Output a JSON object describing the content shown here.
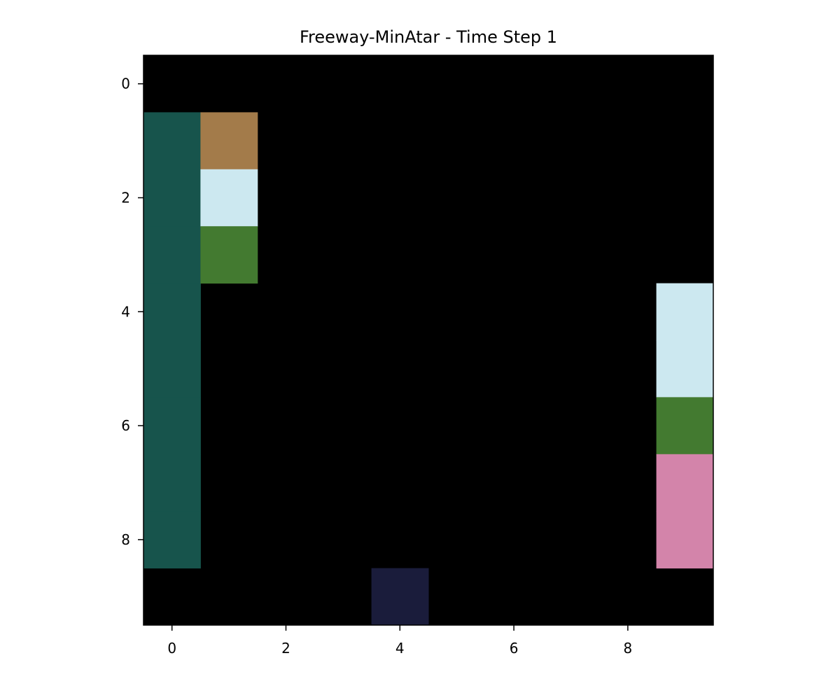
{
  "title": "Freeway-MinAtar - Time Step 1",
  "grid": {
    "rows": 10,
    "cols": 10,
    "background_color": "#000000"
  },
  "axes": {
    "x_ticks": [
      {
        "value": 0,
        "label": "0"
      },
      {
        "value": 2,
        "label": "2"
      },
      {
        "value": 4,
        "label": "4"
      },
      {
        "value": 6,
        "label": "6"
      },
      {
        "value": 8,
        "label": "8"
      }
    ],
    "y_ticks": [
      {
        "value": 0,
        "label": "0"
      },
      {
        "value": 2,
        "label": "2"
      },
      {
        "value": 4,
        "label": "4"
      },
      {
        "value": 6,
        "label": "6"
      },
      {
        "value": 8,
        "label": "8"
      }
    ],
    "xlim": [
      -0.5,
      9.5
    ],
    "ylim": [
      9.5,
      -0.5
    ]
  },
  "cells": [
    {
      "name": "left-lane-cell",
      "row": 1,
      "col": 0,
      "color": "#17544c"
    },
    {
      "name": "left-lane-cell",
      "row": 2,
      "col": 0,
      "color": "#17544c"
    },
    {
      "name": "left-lane-cell",
      "row": 3,
      "col": 0,
      "color": "#17544c"
    },
    {
      "name": "left-lane-cell",
      "row": 4,
      "col": 0,
      "color": "#17544c"
    },
    {
      "name": "left-lane-cell",
      "row": 5,
      "col": 0,
      "color": "#17544c"
    },
    {
      "name": "left-lane-cell",
      "row": 6,
      "col": 0,
      "color": "#17544c"
    },
    {
      "name": "left-lane-cell",
      "row": 7,
      "col": 0,
      "color": "#17544c"
    },
    {
      "name": "left-lane-cell",
      "row": 8,
      "col": 0,
      "color": "#17544c"
    },
    {
      "name": "brown-cell",
      "row": 1,
      "col": 1,
      "color": "#a37b4a"
    },
    {
      "name": "light-blue-cell",
      "row": 2,
      "col": 1,
      "color": "#cce8f0"
    },
    {
      "name": "green-cell",
      "row": 3,
      "col": 1,
      "color": "#437a30"
    },
    {
      "name": "light-blue-cell",
      "row": 4,
      "col": 9,
      "color": "#cce8f0"
    },
    {
      "name": "light-blue-cell",
      "row": 5,
      "col": 9,
      "color": "#cce8f0"
    },
    {
      "name": "green-cell",
      "row": 6,
      "col": 9,
      "color": "#437a30"
    },
    {
      "name": "pink-cell",
      "row": 7,
      "col": 9,
      "color": "#d384aa"
    },
    {
      "name": "pink-cell",
      "row": 8,
      "col": 9,
      "color": "#d384aa"
    },
    {
      "name": "navy-cell",
      "row": 9,
      "col": 4,
      "color": "#1a1c3b"
    }
  ]
}
